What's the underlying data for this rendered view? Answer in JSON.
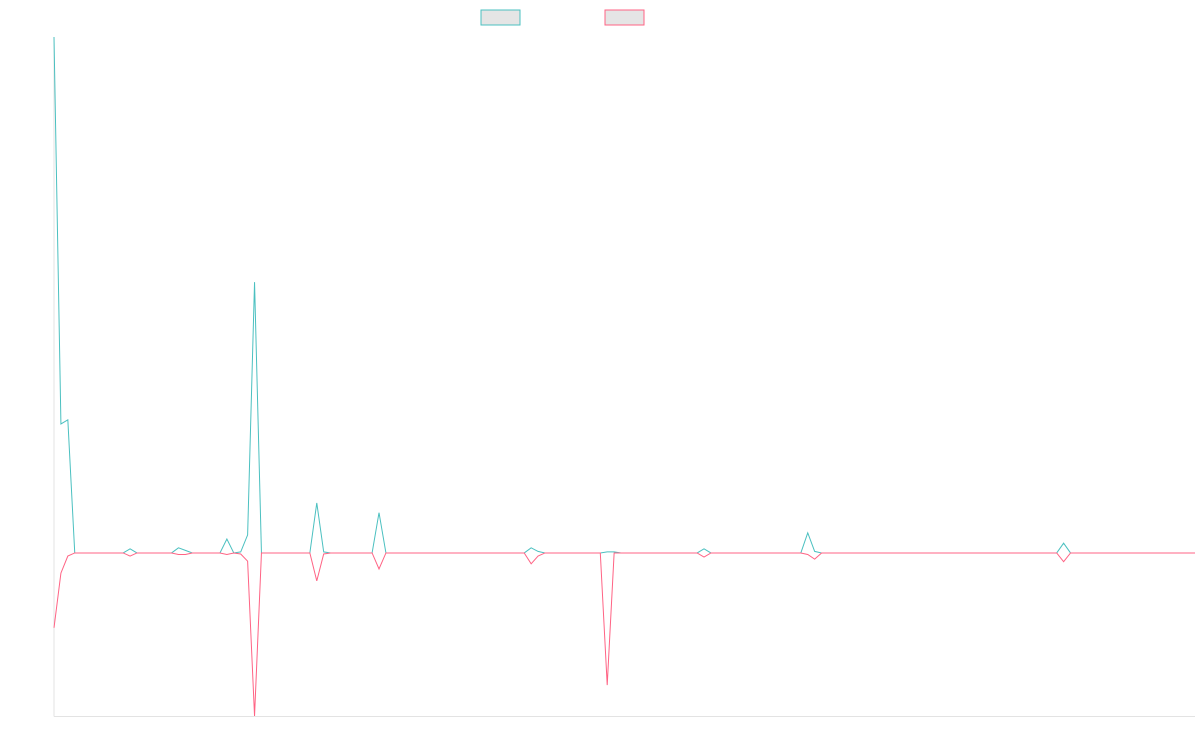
{
  "chart_data": {
    "type": "line",
    "title": "",
    "xlabel": "",
    "ylabel": "",
    "ylim": [
      -31.6,
      100
    ],
    "grid": false,
    "legend": {
      "placement": "top",
      "entries": [
        "",
        ""
      ]
    },
    "series": [
      {
        "color": "#4bc0c0",
        "values": [
          100,
          25,
          25.8,
          0,
          0,
          0,
          0,
          0,
          0,
          0,
          0,
          0.8,
          0,
          0,
          0,
          0,
          0,
          0,
          1,
          0.5,
          0,
          0,
          0,
          0,
          0,
          2.7,
          0,
          0.2,
          3.5,
          52.5,
          0,
          0,
          0,
          0,
          0,
          0,
          0,
          0,
          9.7,
          0.2,
          0,
          0,
          0,
          0,
          0,
          0,
          0,
          7.8,
          0,
          0,
          0,
          0,
          0,
          0,
          0,
          0,
          0,
          0,
          0,
          0,
          0,
          0,
          0,
          0,
          0,
          0,
          0,
          0,
          0,
          1,
          0.3,
          0,
          0,
          0,
          0,
          0,
          0,
          0,
          0,
          0,
          0.2,
          0.2,
          0,
          0,
          0,
          0,
          0,
          0,
          0,
          0,
          0,
          0,
          0,
          0,
          0.8,
          0,
          0,
          0,
          0,
          0,
          0,
          0,
          0,
          0,
          0,
          0,
          0,
          0,
          0,
          3.9,
          0.3,
          0,
          0,
          0,
          0,
          0,
          0,
          0,
          0,
          0,
          0,
          0,
          0,
          0,
          0,
          0,
          0,
          0,
          0,
          0,
          0,
          0,
          0,
          0,
          0,
          0,
          0,
          0,
          0,
          0,
          0,
          0,
          0,
          0,
          0,
          0,
          1.9,
          0,
          0,
          0,
          0,
          0,
          0,
          0,
          0,
          0,
          0,
          0,
          0,
          0,
          0,
          0,
          0,
          0,
          0,
          0
        ]
      },
      {
        "color": "#ff6384",
        "values": [
          -14.5,
          -3.9,
          -0.6,
          0,
          0,
          0,
          0,
          0,
          0,
          0,
          0,
          -0.6,
          0,
          0,
          0,
          0,
          0,
          0,
          -0.3,
          -0.3,
          0,
          0,
          0,
          0,
          0,
          -0.3,
          0,
          -0.2,
          -1.6,
          -31.6,
          0,
          0,
          0,
          0,
          0,
          0,
          0,
          0,
          -5.4,
          -0.2,
          0,
          0,
          0,
          0,
          0,
          0,
          0,
          -3.1,
          0,
          0,
          0,
          0,
          0,
          0,
          0,
          0,
          0,
          0,
          0,
          0,
          0,
          0,
          0,
          0,
          0,
          0,
          0,
          0,
          0,
          -2.1,
          -0.6,
          0,
          0,
          0,
          0,
          0,
          0,
          0,
          0,
          0,
          -25.6,
          0,
          0,
          0,
          0,
          0,
          0,
          0,
          0,
          0,
          0,
          0,
          0,
          0,
          -0.8,
          0,
          0,
          0,
          0,
          0,
          0,
          0,
          0,
          0,
          0,
          0,
          0,
          0,
          0,
          -0.3,
          -1.2,
          0,
          0,
          0,
          0,
          0,
          0,
          0,
          0,
          0,
          0,
          0,
          0,
          0,
          0,
          0,
          0,
          0,
          0,
          0,
          0,
          0,
          0,
          0,
          0,
          0,
          0,
          0,
          0,
          0,
          0,
          0,
          0,
          0,
          0,
          0,
          -1.7,
          0,
          0,
          0,
          0,
          0,
          0,
          0,
          0,
          0,
          0,
          0,
          0,
          0,
          0,
          0,
          0,
          0,
          0,
          0
        ]
      }
    ]
  }
}
